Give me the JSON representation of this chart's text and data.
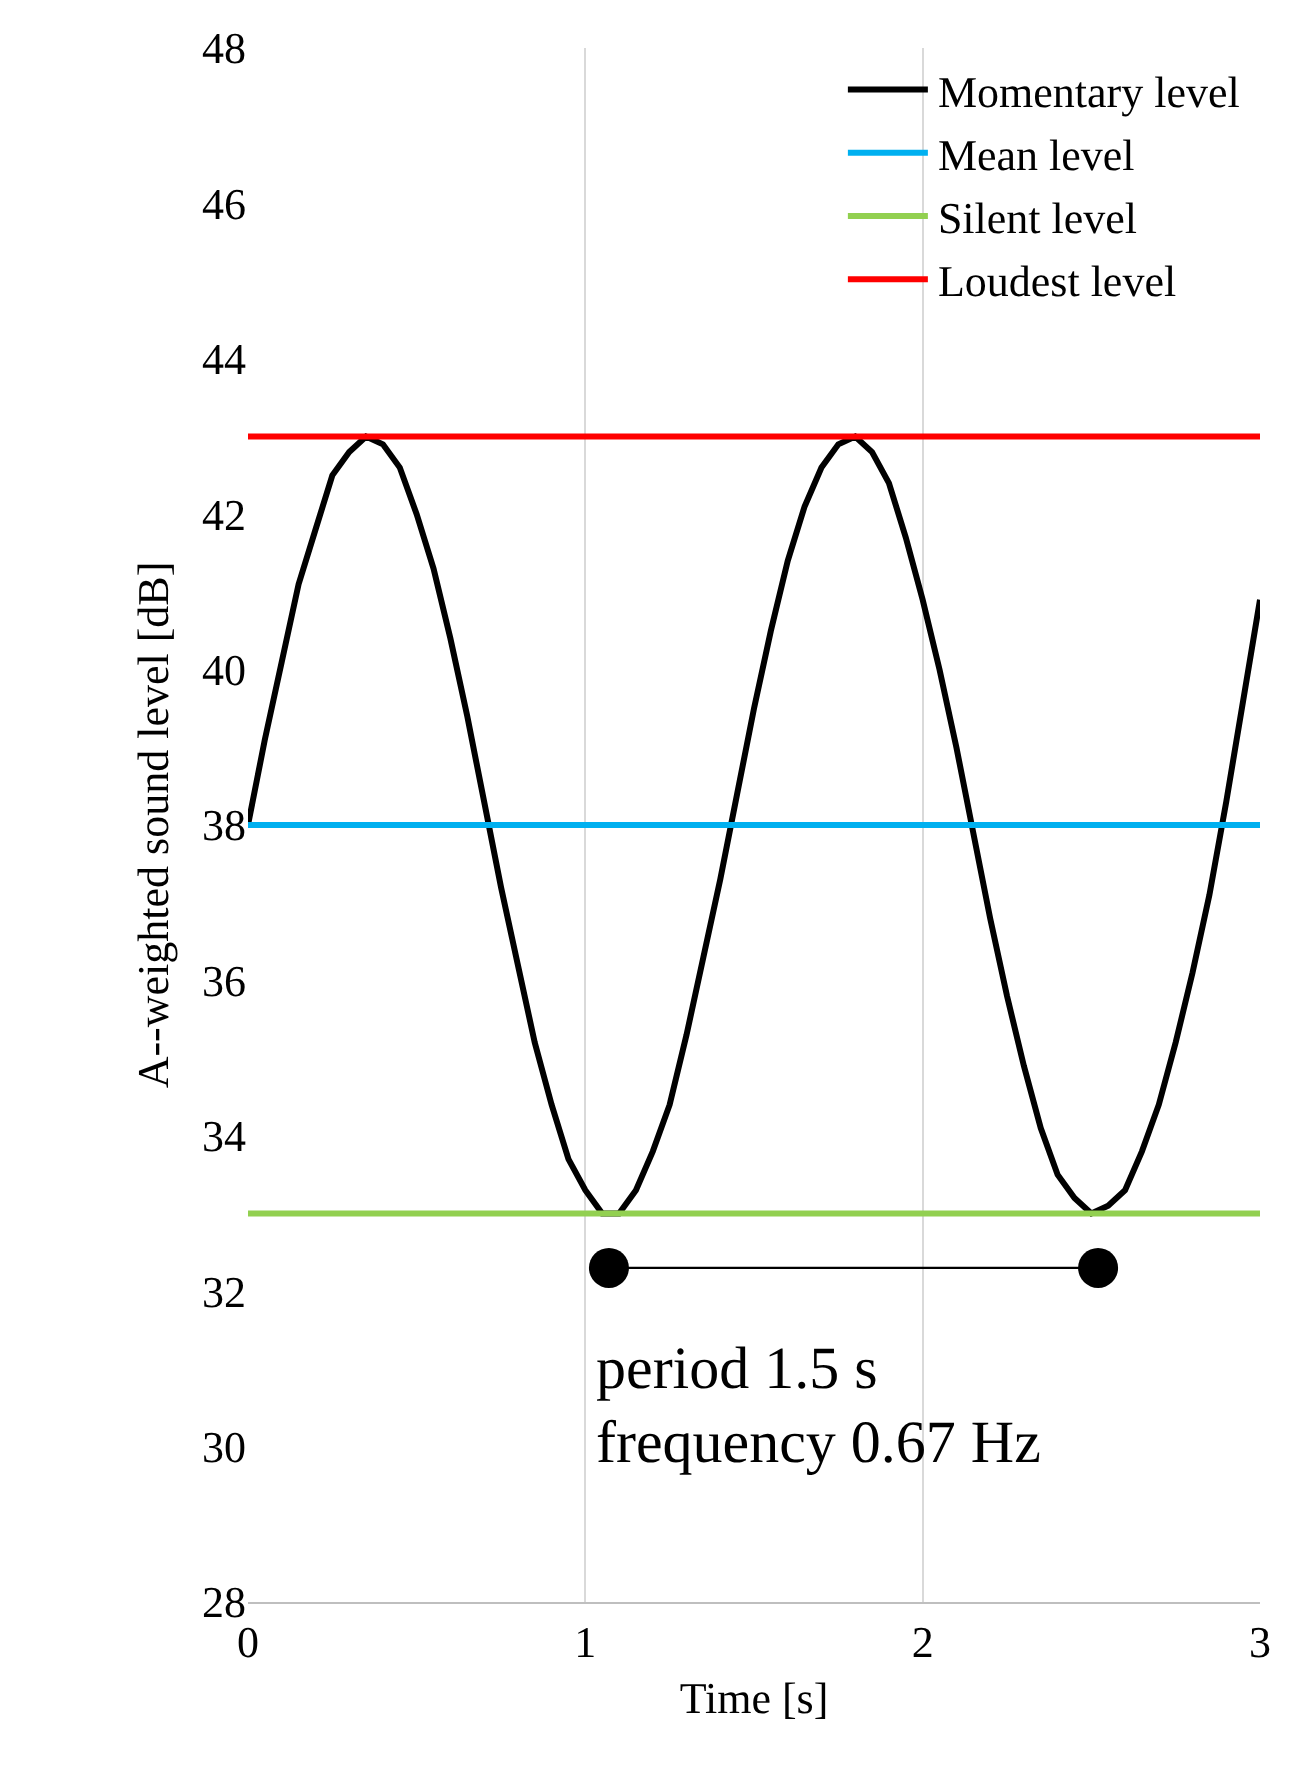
{
  "chart_data": {
    "type": "line",
    "xlabel": "Time [s]",
    "ylabel": "A--weighted sound level [dB]",
    "xlim": [
      0,
      3
    ],
    "xticks": [
      0,
      1,
      2,
      3
    ],
    "ylim": [
      28,
      48
    ],
    "yticks": [
      28,
      30,
      32,
      34,
      36,
      38,
      40,
      42,
      44,
      46,
      48
    ],
    "grid": "x",
    "legend": "top right",
    "line_style": "solid",
    "series": [
      {
        "name": "Momentary level",
        "color": "#000000",
        "marker": "none",
        "x": [
          0,
          0.05,
          0.1,
          0.15,
          0.2,
          0.25,
          0.3,
          0.35,
          0.4,
          0.45,
          0.5,
          0.55,
          0.6,
          0.65,
          0.7,
          0.75,
          0.8,
          0.85,
          0.9,
          0.95,
          1.0,
          1.05,
          1.1,
          1.15,
          1.2,
          1.25,
          1.3,
          1.35,
          1.4,
          1.45,
          1.5,
          1.55,
          1.6,
          1.65,
          1.7,
          1.75,
          1.8,
          1.85,
          1.9,
          1.95,
          2.0,
          2.05,
          2.1,
          2.15,
          2.2,
          2.25,
          2.3,
          2.35,
          2.4,
          2.45,
          2.5,
          2.55,
          2.6,
          2.65,
          2.7,
          2.75,
          2.8,
          2.85,
          2.9,
          2.95,
          3.0
        ],
        "values": [
          38,
          39.1,
          40.1,
          41.1,
          41.8,
          42.5,
          42.8,
          43.0,
          42.9,
          42.6,
          42.0,
          41.3,
          40.4,
          39.4,
          38.3,
          37.2,
          36.2,
          35.2,
          34.4,
          33.7,
          33.3,
          33.0,
          33.0,
          33.3,
          33.8,
          34.4,
          35.3,
          36.3,
          37.3,
          38.4,
          39.5,
          40.5,
          41.4,
          42.1,
          42.6,
          42.9,
          43.0,
          42.8,
          42.4,
          41.7,
          40.9,
          40.0,
          39.0,
          37.9,
          36.8,
          35.8,
          34.9,
          34.1,
          33.5,
          33.2,
          33.0,
          33.1,
          33.3,
          33.8,
          34.4,
          35.2,
          36.1,
          37.1,
          38.3,
          39.6,
          40.9
        ]
      },
      {
        "name": "Mean level",
        "color": "#00b0f0",
        "marker": "none",
        "x": [
          0,
          3
        ],
        "values": [
          38,
          38
        ]
      },
      {
        "name": "Silent level",
        "color": "#92d050",
        "marker": "none",
        "x": [
          0,
          3
        ],
        "values": [
          33,
          33
        ]
      },
      {
        "name": "Loudest level",
        "color": "#ff0000",
        "marker": "none",
        "x": [
          0,
          3
        ],
        "values": [
          43,
          43
        ]
      },
      {
        "color": "#000000",
        "marker": "circle",
        "x": [
          1.07,
          2.52
        ],
        "values": [
          32.3,
          32.3
        ]
      }
    ],
    "annotations": [
      "period 1.5 s",
      "frequency 0.67 Hz"
    ]
  }
}
